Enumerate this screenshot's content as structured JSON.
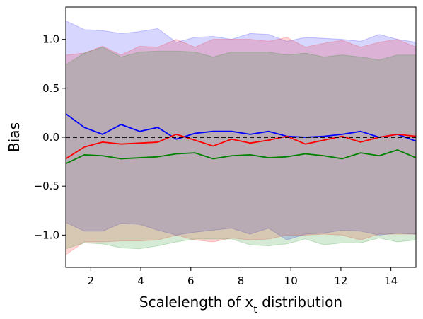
{
  "chart_data": {
    "type": "line",
    "xlabel": "Scalelength of x",
    "xlabel_subscript": "t",
    "xlabel_suffix": " distribution",
    "ylabel": "Bias",
    "xlim": [
      1,
      15
    ],
    "ylim": [
      -1.33,
      1.33
    ],
    "xticks": [
      2,
      4,
      6,
      8,
      10,
      12,
      14
    ],
    "yticks": [
      -1.0,
      -0.5,
      0.0,
      0.5,
      1.0
    ],
    "ytick_labels": [
      "−1.0",
      "−0.5",
      "0.0",
      "0.5",
      "1.0"
    ],
    "grid": false,
    "legend": "none",
    "reference_line": {
      "y": 0,
      "color": "#000000",
      "style": "dashed"
    },
    "x": [
      1.0,
      1.74,
      2.47,
      3.21,
      3.95,
      4.68,
      5.42,
      6.16,
      6.89,
      7.63,
      8.37,
      9.11,
      9.84,
      10.58,
      11.32,
      12.05,
      12.79,
      13.53,
      14.26,
      15.0
    ],
    "series": [
      {
        "color": "#0000ff",
        "fill_color": "#0000ff",
        "values": [
          0.24,
          0.1,
          0.03,
          0.13,
          0.06,
          0.1,
          -0.02,
          0.04,
          0.06,
          0.06,
          0.03,
          0.06,
          0.01,
          0.0,
          0.01,
          0.03,
          0.06,
          0.0,
          0.03,
          -0.04
        ],
        "upper": [
          1.19,
          1.1,
          1.09,
          1.06,
          1.08,
          1.11,
          0.97,
          1.02,
          1.03,
          1.0,
          1.06,
          1.05,
          0.98,
          1.02,
          1.01,
          1.0,
          0.98,
          1.05,
          1.0,
          0.97
        ],
        "lower": [
          -0.87,
          -0.96,
          -0.96,
          -0.88,
          -0.89,
          -0.95,
          -1.0,
          -0.97,
          -0.95,
          -0.93,
          -0.99,
          -0.93,
          -1.05,
          -0.99,
          -0.98,
          -0.95,
          -0.96,
          -1.0,
          -0.98,
          -0.99
        ]
      },
      {
        "color": "#ff0000",
        "fill_color": "#ff0000",
        "values": [
          -0.22,
          -0.1,
          -0.05,
          -0.07,
          -0.06,
          -0.05,
          0.03,
          -0.03,
          -0.09,
          -0.02,
          -0.06,
          -0.03,
          0.01,
          -0.07,
          -0.03,
          0.01,
          -0.05,
          0.0,
          0.03,
          0.01
        ],
        "upper": [
          0.84,
          0.86,
          0.93,
          0.84,
          0.93,
          0.92,
          1.0,
          0.92,
          1.0,
          1.0,
          1.0,
          0.98,
          1.02,
          0.92,
          0.96,
          0.99,
          0.92,
          0.97,
          1.0,
          0.92
        ],
        "lower": [
          -1.2,
          -1.07,
          -1.07,
          -1.06,
          -1.06,
          -1.05,
          -1.0,
          -1.05,
          -1.07,
          -1.03,
          -1.05,
          -1.04,
          -1.0,
          -1.0,
          -0.99,
          -1.0,
          -1.05,
          -0.99,
          -0.99,
          -0.99
        ]
      },
      {
        "color": "#008000",
        "fill_color": "#008000",
        "values": [
          -0.27,
          -0.18,
          -0.19,
          -0.22,
          -0.21,
          -0.2,
          -0.17,
          -0.16,
          -0.22,
          -0.19,
          -0.18,
          -0.21,
          -0.2,
          -0.17,
          -0.19,
          -0.22,
          -0.16,
          -0.19,
          -0.13,
          -0.21
        ],
        "upper": [
          0.74,
          0.86,
          0.92,
          0.82,
          0.87,
          0.88,
          0.88,
          0.87,
          0.82,
          0.87,
          0.87,
          0.87,
          0.84,
          0.86,
          0.82,
          0.84,
          0.82,
          0.79,
          0.84,
          0.84
        ],
        "lower": [
          -1.14,
          -1.08,
          -1.09,
          -1.13,
          -1.14,
          -1.11,
          -1.07,
          -1.04,
          -1.04,
          -1.04,
          -1.1,
          -1.11,
          -1.09,
          -1.04,
          -1.1,
          -1.08,
          -1.08,
          -1.03,
          -1.07,
          -1.05
        ]
      }
    ]
  }
}
